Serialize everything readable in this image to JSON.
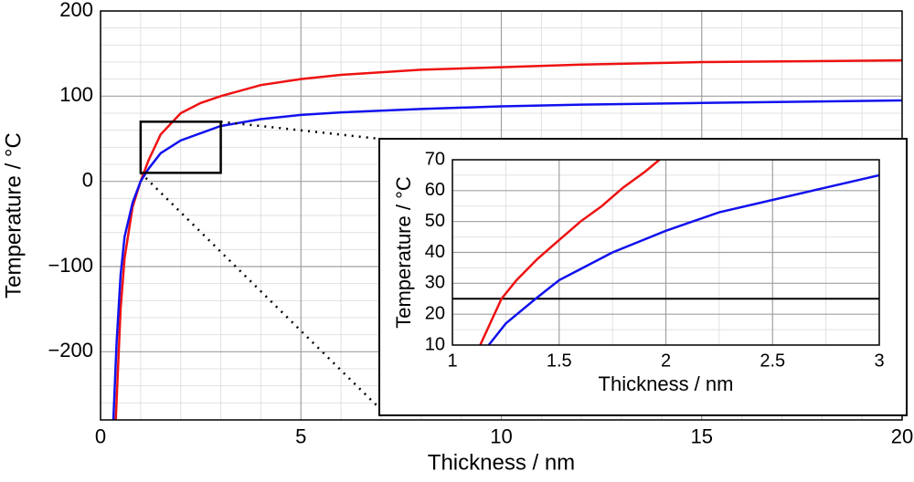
{
  "chart_data": [
    {
      "type": "line",
      "xlabel": "Thickness / nm",
      "ylabel": "Temperature / °C",
      "xlim": [
        0,
        20
      ],
      "xticks": [
        0,
        5,
        10,
        15,
        20
      ],
      "ylim": [
        -280,
        200
      ],
      "yticks": [
        {
          "value": -200,
          "label": "−200"
        },
        {
          "value": -100,
          "label": "−100"
        },
        0,
        100,
        200
      ],
      "grid": true,
      "minor_divisions": 5,
      "series": [
        {
          "color": "#ee1111",
          "x": [
            0.38,
            0.5,
            0.6,
            0.8,
            1,
            1.2,
            1.5,
            2,
            2.5,
            3,
            4,
            5,
            6,
            8,
            10,
            12,
            15,
            20
          ],
          "values": [
            -280,
            -150,
            -90,
            -30,
            0,
            25,
            55,
            80,
            92,
            100,
            113,
            120,
            125,
            131,
            134,
            137,
            140,
            142
          ]
        },
        {
          "color": "#1111ee",
          "x": [
            0.32,
            0.4,
            0.5,
            0.6,
            0.8,
            1,
            1.2,
            1.5,
            2,
            3,
            4,
            5,
            6,
            8,
            10,
            12,
            15,
            20
          ],
          "values": [
            -280,
            -190,
            -110,
            -65,
            -25,
            0,
            15,
            33,
            48,
            65,
            73,
            78,
            81,
            85,
            88,
            90,
            92,
            95
          ]
        }
      ]
    },
    {
      "type": "line",
      "xlabel": "Thickness / nm",
      "ylabel": "Temperature / °C",
      "xlim": [
        1,
        3
      ],
      "xticks": [
        1,
        1.5,
        2,
        2.5,
        3
      ],
      "ylim": [
        10,
        70
      ],
      "yticks": [
        10,
        20,
        30,
        40,
        50,
        60,
        70
      ],
      "grid": true,
      "minor_divisions": 2,
      "hline": 25,
      "series": [
        {
          "color": "#ee1111",
          "x": [
            1.13,
            1.23,
            1.3,
            1.4,
            1.5,
            1.6,
            1.7,
            1.8,
            1.9,
            1.97
          ],
          "values": [
            10,
            25,
            31,
            38,
            44,
            50,
            55,
            61,
            66,
            70
          ]
        },
        {
          "color": "#1111ee",
          "x": [
            1.17,
            1.25,
            1.39,
            1.5,
            1.75,
            2,
            2.25,
            2.5,
            2.75,
            3
          ],
          "values": [
            10,
            17,
            25,
            31,
            40,
            47,
            53,
            57,
            61,
            65
          ]
        }
      ]
    }
  ]
}
